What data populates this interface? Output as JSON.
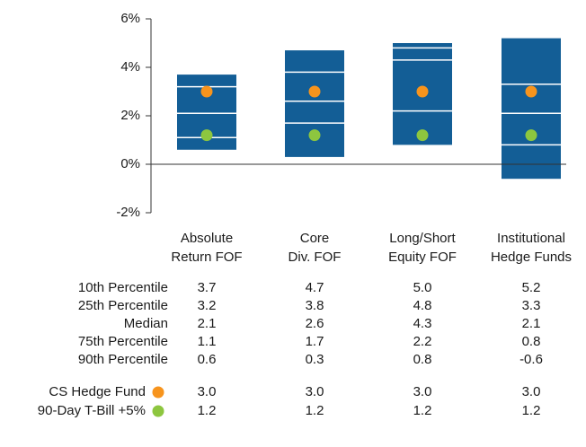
{
  "chart_data": {
    "type": "box",
    "categories": [
      [
        "Absolute",
        "Return FOF"
      ],
      [
        "Core",
        "Div. FOF"
      ],
      [
        "Long/Short",
        "Equity FOF"
      ],
      [
        "Institutional",
        "Hedge Funds"
      ]
    ],
    "box_color": "#135e96",
    "ylim": [
      -2,
      6
    ],
    "yticks": [
      {
        "value": -2,
        "label": "-2%"
      },
      {
        "value": 0,
        "label": "0%"
      },
      {
        "value": 2,
        "label": "2%"
      },
      {
        "value": 4,
        "label": "4%"
      },
      {
        "value": 6,
        "label": "6%"
      }
    ],
    "percentiles": [
      {
        "name": "10th Percentile",
        "values": [
          3.7,
          4.7,
          5.0,
          5.2
        ],
        "value_labels": [
          "3.7",
          "4.7",
          "5.0",
          "5.2"
        ]
      },
      {
        "name": "25th Percentile",
        "values": [
          3.2,
          3.8,
          4.8,
          3.3
        ],
        "value_labels": [
          "3.2",
          "3.8",
          "4.8",
          "3.3"
        ]
      },
      {
        "name": "Median",
        "values": [
          2.1,
          2.6,
          4.3,
          2.1
        ],
        "value_labels": [
          "2.1",
          "2.6",
          "4.3",
          "2.1"
        ]
      },
      {
        "name": "75th Percentile",
        "values": [
          1.1,
          1.7,
          2.2,
          0.8
        ],
        "value_labels": [
          "1.1",
          "1.7",
          "2.2",
          "0.8"
        ]
      },
      {
        "name": "90th Percentile",
        "values": [
          0.6,
          0.3,
          0.8,
          -0.6
        ],
        "value_labels": [
          "0.6",
          "0.3",
          "0.8",
          "-0.6"
        ]
      }
    ],
    "series": [
      {
        "name": "CS Hedge Fund",
        "color": "#f7941d",
        "values": [
          3.0,
          3.0,
          3.0,
          3.0
        ],
        "value_labels": [
          "3.0",
          "3.0",
          "3.0",
          "3.0"
        ]
      },
      {
        "name": "90-Day T-Bill +5%",
        "color": "#8dc63f",
        "values": [
          1.2,
          1.2,
          1.2,
          1.2
        ],
        "value_labels": [
          "1.2",
          "1.2",
          "1.2",
          "1.2"
        ]
      }
    ]
  }
}
